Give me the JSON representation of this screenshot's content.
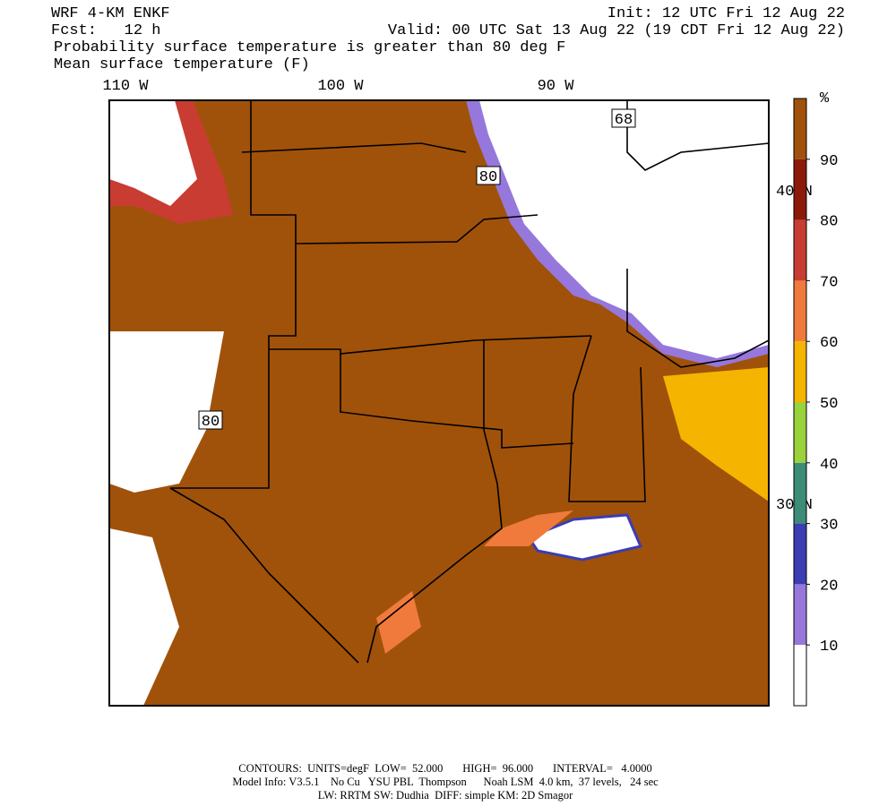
{
  "header": {
    "model": "WRF 4-KM ENKF",
    "init": "Init: 12 UTC Fri 12 Aug 22",
    "forecast": "Fcst:   12 h",
    "valid": "Valid: 00 UTC Sat 13 Aug 22 (19 CDT Fri 12 Aug 22)",
    "field1": "Probability surface temperature is greater than 80 deg F",
    "field2": "Mean surface temperature (F)"
  },
  "map": {
    "longitude_labels": [
      "110 W",
      "100 W",
      "90 W"
    ],
    "latitude_labels": [
      "40 N",
      "30 N"
    ],
    "contour_labels": [
      "68",
      "80",
      "80"
    ]
  },
  "colorbar": {
    "unit": "%",
    "ticks": [
      90,
      80,
      70,
      60,
      50,
      40,
      30,
      20,
      10
    ],
    "colors": [
      "#a0520a",
      "#8c1a0a",
      "#c83c32",
      "#f07a3c",
      "#f5b400",
      "#9ad23c",
      "#3c8c78",
      "#3c3cb4",
      "#9678dc",
      "#ffffff"
    ]
  },
  "footer": {
    "line1": "CONTOURS:  UNITS=degF  LOW=  52.000       HIGH=  96.000       INTERVAL=   4.0000",
    "line2": "Model Info: V3.5.1    No Cu   YSU PBL  Thompson      Noah LSM  4.0 km,  37 levels,   24 sec",
    "line3": "LW: RRTM SW: Dudhia  DIFF: simple KM: 2D Smagor"
  }
}
